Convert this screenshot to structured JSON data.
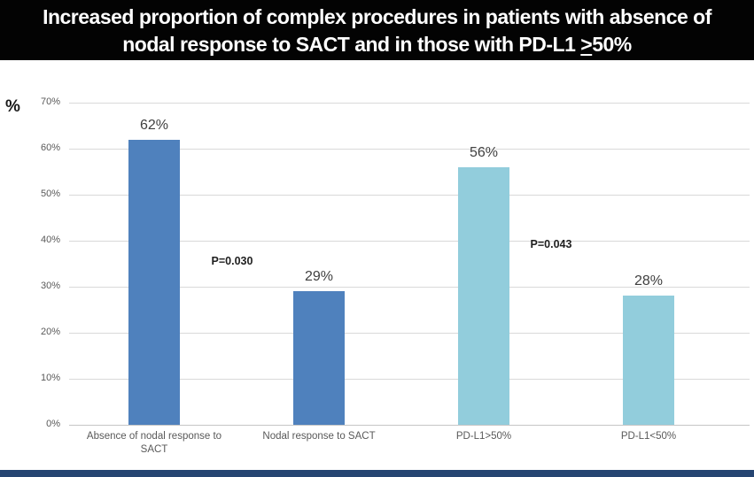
{
  "slide": {
    "title": {
      "line1": "Increased proportion of complex procedures in patients with absence of",
      "line2_prefix": "nodal response to SACT and in those with PD-L1 ",
      "line2_gte_symbol": ">",
      "line2_suffix": "50%"
    },
    "colors": {
      "title_bg": "#030303",
      "title_text": "#ffffff",
      "bottom_accent_bar": "#264572"
    }
  },
  "chart_data": {
    "type": "bar",
    "title": "",
    "xlabel": "",
    "ylabel": "%",
    "ylim": [
      0,
      70
    ],
    "ytick_step": 10,
    "yticks": [
      "70%",
      "60%",
      "50%",
      "40%",
      "30%",
      "20%",
      "10%",
      "0%"
    ],
    "grid": true,
    "legend": "none",
    "categories": [
      "Absence of nodal response to SACT",
      "Nodal response to SACT",
      "PD-L1>50%",
      "PD-L1<50%"
    ],
    "values": [
      62,
      29,
      56,
      28
    ],
    "value_labels": [
      "62%",
      "29%",
      "56%",
      "28%"
    ],
    "bar_colors": [
      "#4F81BD",
      "#4F81BD",
      "#92CDDC",
      "#92CDDC"
    ],
    "series_palette": {
      "dark_blue": "#4F81BD",
      "light_blue": "#92CDDC"
    },
    "annotations": [
      {
        "text": "P=0.030",
        "refers_to": "Absence of nodal response vs nodal response to SACT"
      },
      {
        "text": "P=0.043",
        "refers_to": "PD-L1>50% vs PD-L1<50%"
      }
    ]
  }
}
